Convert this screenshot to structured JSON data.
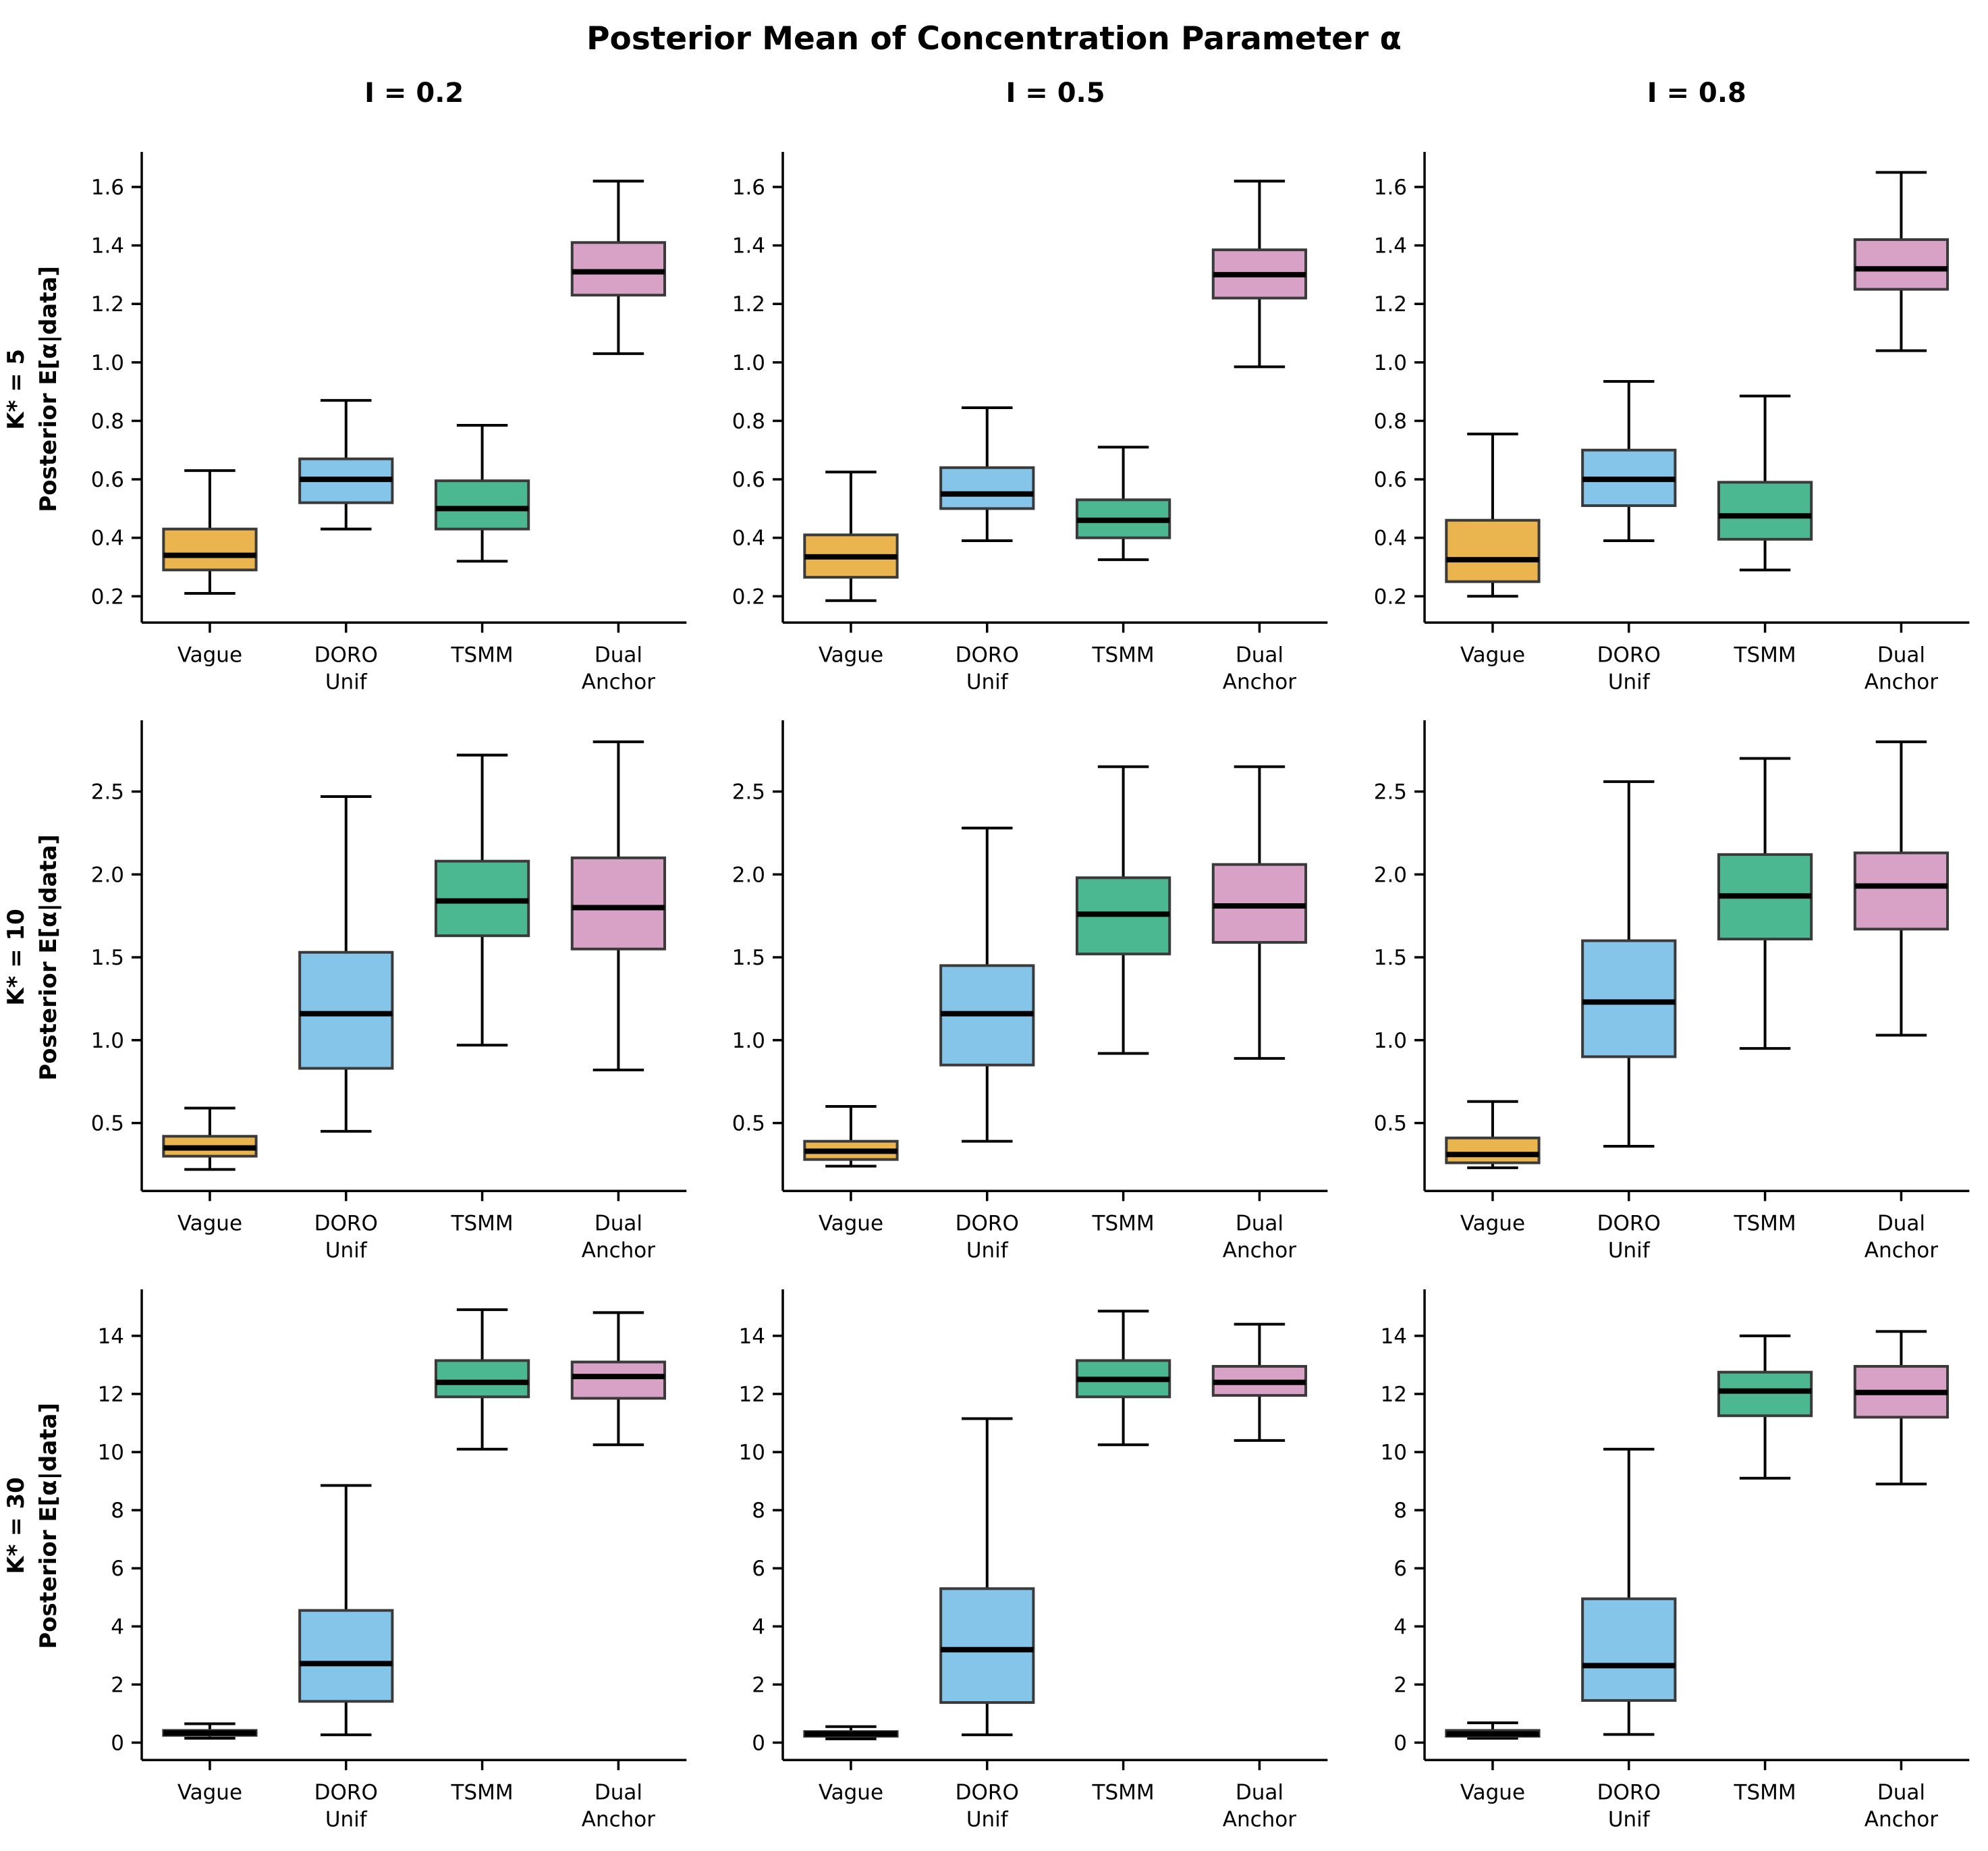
{
  "chart_data": {
    "type": "box",
    "title": "Posterior Mean of Concentration Parameter α",
    "legend": "none",
    "grid": false,
    "columns": [
      {
        "header": "I = 0.2"
      },
      {
        "header": "I = 0.5"
      },
      {
        "header": "I = 0.8"
      }
    ],
    "rows": [
      {
        "label_line1": "K* = 5",
        "label_line2": "Posterior E[α|data]",
        "ylim": [
          0.11,
          1.72
        ],
        "ytick_vals": [
          0.2,
          0.4,
          0.6,
          0.8,
          1.0,
          1.2,
          1.4,
          1.6
        ],
        "ytick_labels": [
          "0.2",
          "0.4",
          "0.6",
          "0.8",
          "1.0",
          "1.2",
          "1.4",
          "1.6"
        ]
      },
      {
        "label_line1": "K* = 10",
        "label_line2": "Posterior E[α|data]",
        "ylim": [
          0.09,
          2.93
        ],
        "ytick_vals": [
          0.5,
          1.0,
          1.5,
          2.0,
          2.5
        ],
        "ytick_labels": [
          "0.5",
          "1.0",
          "1.5",
          "2.0",
          "2.5"
        ]
      },
      {
        "label_line1": "K* = 30",
        "label_line2": "Posterior E[α|data]",
        "ylim": [
          -0.6,
          15.6
        ],
        "ytick_vals": [
          0,
          2,
          4,
          6,
          8,
          10,
          12,
          14
        ],
        "ytick_labels": [
          "0",
          "2",
          "4",
          "6",
          "8",
          "10",
          "12",
          "14"
        ]
      }
    ],
    "categories": [
      [
        "Vague"
      ],
      [
        "DORO",
        "Unif"
      ],
      [
        "TSMM"
      ],
      [
        "Dual",
        "Anchor"
      ]
    ],
    "series_colors": [
      "#EAB54E",
      "#85C5EA",
      "#4CB891",
      "#D7A2C5"
    ],
    "box_edge_color": "#3A3A3A",
    "whisker_color": "#000000",
    "median_color": "#000000",
    "cells": [
      {
        "row": 0,
        "col": 0,
        "boxes": [
          {
            "label": "Vague",
            "whislo": 0.21,
            "q1": 0.29,
            "med": 0.34,
            "q3": 0.43,
            "whishi": 0.63
          },
          {
            "label": "DORO Unif",
            "whislo": 0.43,
            "q1": 0.52,
            "med": 0.6,
            "q3": 0.67,
            "whishi": 0.87
          },
          {
            "label": "TSMM",
            "whislo": 0.32,
            "q1": 0.43,
            "med": 0.5,
            "q3": 0.595,
            "whishi": 0.785
          },
          {
            "label": "Dual Anchor",
            "whislo": 1.03,
            "q1": 1.23,
            "med": 1.31,
            "q3": 1.41,
            "whishi": 1.62
          }
        ]
      },
      {
        "row": 0,
        "col": 1,
        "boxes": [
          {
            "label": "Vague",
            "whislo": 0.185,
            "q1": 0.265,
            "med": 0.335,
            "q3": 0.41,
            "whishi": 0.625
          },
          {
            "label": "DORO Unif",
            "whislo": 0.39,
            "q1": 0.5,
            "med": 0.55,
            "q3": 0.64,
            "whishi": 0.845
          },
          {
            "label": "TSMM",
            "whislo": 0.325,
            "q1": 0.4,
            "med": 0.46,
            "q3": 0.53,
            "whishi": 0.71
          },
          {
            "label": "Dual Anchor",
            "whislo": 0.985,
            "q1": 1.22,
            "med": 1.3,
            "q3": 1.385,
            "whishi": 1.62
          }
        ]
      },
      {
        "row": 0,
        "col": 2,
        "boxes": [
          {
            "label": "Vague",
            "whislo": 0.2,
            "q1": 0.25,
            "med": 0.325,
            "q3": 0.46,
            "whishi": 0.755
          },
          {
            "label": "DORO Unif",
            "whislo": 0.39,
            "q1": 0.51,
            "med": 0.6,
            "q3": 0.7,
            "whishi": 0.935
          },
          {
            "label": "TSMM",
            "whislo": 0.29,
            "q1": 0.395,
            "med": 0.475,
            "q3": 0.59,
            "whishi": 0.885
          },
          {
            "label": "Dual Anchor",
            "whislo": 1.04,
            "q1": 1.25,
            "med": 1.32,
            "q3": 1.42,
            "whishi": 1.65
          }
        ]
      },
      {
        "row": 1,
        "col": 0,
        "boxes": [
          {
            "label": "Vague",
            "whislo": 0.22,
            "q1": 0.3,
            "med": 0.35,
            "q3": 0.42,
            "whishi": 0.59
          },
          {
            "label": "DORO Unif",
            "whislo": 0.45,
            "q1": 0.83,
            "med": 1.16,
            "q3": 1.53,
            "whishi": 2.47
          },
          {
            "label": "TSMM",
            "whislo": 0.97,
            "q1": 1.63,
            "med": 1.84,
            "q3": 2.08,
            "whishi": 2.72
          },
          {
            "label": "Dual Anchor",
            "whislo": 0.82,
            "q1": 1.55,
            "med": 1.8,
            "q3": 2.1,
            "whishi": 2.8
          }
        ]
      },
      {
        "row": 1,
        "col": 1,
        "boxes": [
          {
            "label": "Vague",
            "whislo": 0.24,
            "q1": 0.28,
            "med": 0.33,
            "q3": 0.39,
            "whishi": 0.6
          },
          {
            "label": "DORO Unif",
            "whislo": 0.39,
            "q1": 0.85,
            "med": 1.16,
            "q3": 1.45,
            "whishi": 2.28
          },
          {
            "label": "TSMM",
            "whislo": 0.92,
            "q1": 1.52,
            "med": 1.76,
            "q3": 1.98,
            "whishi": 2.65
          },
          {
            "label": "Dual Anchor",
            "whislo": 0.89,
            "q1": 1.59,
            "med": 1.81,
            "q3": 2.06,
            "whishi": 2.65
          }
        ]
      },
      {
        "row": 1,
        "col": 2,
        "boxes": [
          {
            "label": "Vague",
            "whislo": 0.23,
            "q1": 0.26,
            "med": 0.31,
            "q3": 0.41,
            "whishi": 0.63
          },
          {
            "label": "DORO Unif",
            "whislo": 0.36,
            "q1": 0.9,
            "med": 1.23,
            "q3": 1.6,
            "whishi": 2.56
          },
          {
            "label": "TSMM",
            "whislo": 0.95,
            "q1": 1.61,
            "med": 1.87,
            "q3": 2.12,
            "whishi": 2.7
          },
          {
            "label": "Dual Anchor",
            "whislo": 1.03,
            "q1": 1.67,
            "med": 1.93,
            "q3": 2.13,
            "whishi": 2.8
          }
        ]
      },
      {
        "row": 2,
        "col": 0,
        "boxes": [
          {
            "label": "Vague",
            "whislo": 0.15,
            "q1": 0.25,
            "med": 0.33,
            "q3": 0.42,
            "whishi": 0.65
          },
          {
            "label": "DORO Unif",
            "whislo": 0.27,
            "q1": 1.42,
            "med": 2.72,
            "q3": 4.55,
            "whishi": 8.85
          },
          {
            "label": "TSMM",
            "whislo": 10.1,
            "q1": 11.9,
            "med": 12.4,
            "q3": 13.15,
            "whishi": 14.9
          },
          {
            "label": "Dual Anchor",
            "whislo": 10.25,
            "q1": 11.85,
            "med": 12.6,
            "q3": 13.1,
            "whishi": 14.8
          }
        ]
      },
      {
        "row": 2,
        "col": 1,
        "boxes": [
          {
            "label": "Vague",
            "whislo": 0.13,
            "q1": 0.22,
            "med": 0.3,
            "q3": 0.38,
            "whishi": 0.55
          },
          {
            "label": "DORO Unif",
            "whislo": 0.27,
            "q1": 1.38,
            "med": 3.2,
            "q3": 5.3,
            "whishi": 11.15
          },
          {
            "label": "TSMM",
            "whislo": 10.25,
            "q1": 11.9,
            "med": 12.5,
            "q3": 13.15,
            "whishi": 14.85
          },
          {
            "label": "Dual Anchor",
            "whislo": 10.4,
            "q1": 11.95,
            "med": 12.4,
            "q3": 12.95,
            "whishi": 14.4
          }
        ]
      },
      {
        "row": 2,
        "col": 2,
        "boxes": [
          {
            "label": "Vague",
            "whislo": 0.15,
            "q1": 0.22,
            "med": 0.3,
            "q3": 0.42,
            "whishi": 0.68
          },
          {
            "label": "DORO Unif",
            "whislo": 0.28,
            "q1": 1.45,
            "med": 2.65,
            "q3": 4.95,
            "whishi": 10.1
          },
          {
            "label": "TSMM",
            "whislo": 9.1,
            "q1": 11.25,
            "med": 12.1,
            "q3": 12.75,
            "whishi": 14.0
          },
          {
            "label": "Dual Anchor",
            "whislo": 8.9,
            "q1": 11.2,
            "med": 12.05,
            "q3": 12.95,
            "whishi": 14.15
          }
        ]
      }
    ]
  }
}
